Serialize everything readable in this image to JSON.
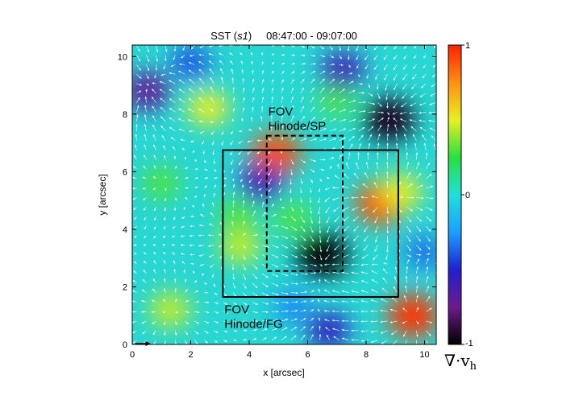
{
  "chart_data": {
    "type": "heatmap",
    "title": {
      "instrument": "SST",
      "series_label": "s1",
      "time_range": "08:47:00 - 09:07:00"
    },
    "xlabel": "x [arcsec]",
    "ylabel": "y [arcsec]",
    "xlim": [
      0,
      10.4
    ],
    "ylim": [
      0,
      10.4
    ],
    "x_ticks": [
      0,
      2,
      4,
      6,
      8,
      10
    ],
    "y_ticks": [
      0,
      2,
      4,
      6,
      8,
      10
    ],
    "colorbar": {
      "label": "∇·v",
      "label_subscript": "h",
      "range": [
        -1,
        1
      ],
      "ticks": [
        {
          "value": 1,
          "label": "1"
        },
        {
          "value": 0,
          "label": "0"
        },
        {
          "value": -1,
          "label": "-1"
        }
      ],
      "colors": [
        "#000000",
        "#6e1a8c",
        "#2020d0",
        "#1aa0ff",
        "#20e0d8",
        "#28e040",
        "#e8f020",
        "#ff9010",
        "#ff2000"
      ]
    },
    "divergence_features": [
      {
        "x": 4.9,
        "y": 6.6,
        "value": 0.9
      },
      {
        "x": 8.5,
        "y": 4.9,
        "value": 0.9
      },
      {
        "x": 9.6,
        "y": 1.0,
        "value": 0.95
      },
      {
        "x": 1.3,
        "y": 1.2,
        "value": 0.45
      },
      {
        "x": 2.6,
        "y": 8.2,
        "value": 0.5
      },
      {
        "x": 3.7,
        "y": 3.4,
        "value": 0.45
      },
      {
        "x": 3.6,
        "y": 4.5,
        "value": 0.3
      },
      {
        "x": 5.5,
        "y": 4.4,
        "value": 0.3
      },
      {
        "x": 1.0,
        "y": 5.6,
        "value": 0.3
      },
      {
        "x": 7.0,
        "y": 8.5,
        "value": 0.3
      },
      {
        "x": 9.2,
        "y": 5.3,
        "value": 0.5
      },
      {
        "x": 6.5,
        "y": 3.1,
        "value": -1.0
      },
      {
        "x": 8.8,
        "y": 7.8,
        "value": -0.95
      },
      {
        "x": 0.5,
        "y": 8.8,
        "value": -0.7
      },
      {
        "x": 4.4,
        "y": 5.6,
        "value": -0.6
      },
      {
        "x": 7.2,
        "y": 9.5,
        "value": -0.6
      },
      {
        "x": 6.7,
        "y": 0.5,
        "value": -0.55
      },
      {
        "x": 2.0,
        "y": 9.8,
        "value": -0.4
      },
      {
        "x": 10.0,
        "y": 3.2,
        "value": -0.35
      },
      {
        "x": 5.5,
        "y": 1.3,
        "value": -0.3
      }
    ],
    "regions": [
      {
        "name": "FOV Hinode/FG",
        "style": "solid",
        "x": [
          3.1,
          9.1
        ],
        "y": [
          1.65,
          6.75
        ]
      },
      {
        "name": "FOV Hinode/SP",
        "style": "dashed",
        "x": [
          4.6,
          7.2
        ],
        "y": [
          2.55,
          7.25
        ]
      }
    ],
    "annotations": [
      {
        "lines": [
          "FOV",
          "Hinode/SP"
        ],
        "x": 4.65,
        "y": 7.95
      },
      {
        "lines": [
          "FOV",
          "Hinode/FG"
        ],
        "x": 3.15,
        "y": 1.08
      }
    ],
    "reference_arrow": {
      "x": 0.1,
      "y": 0.0
    }
  }
}
